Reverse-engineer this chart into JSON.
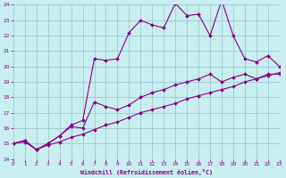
{
  "xlabel": "Windchill (Refroidissement éolien,°C)",
  "bg_color": "#c8eef0",
  "grid_color": "#a0c8d0",
  "line_color": "#880088",
  "x_min": 0,
  "x_max": 23,
  "y_min": 14,
  "y_max": 24,
  "series_top_x": [
    0,
    1,
    2,
    3,
    4,
    5,
    6,
    7,
    8,
    9,
    10,
    11,
    12,
    13,
    14,
    15,
    16,
    17,
    18,
    19,
    20,
    21,
    22,
    23
  ],
  "series_top_y": [
    15.0,
    15.2,
    14.6,
    15.0,
    15.5,
    16.2,
    16.5,
    20.5,
    20.4,
    20.5,
    22.2,
    23.0,
    22.7,
    22.5,
    24.1,
    23.3,
    23.4,
    22.0,
    24.3,
    22.0,
    20.5,
    20.3,
    20.7,
    20.0
  ],
  "series_mid_x": [
    0,
    1,
    2,
    3,
    4,
    5,
    6,
    7,
    8,
    9,
    10,
    11,
    12,
    13,
    14,
    15,
    16,
    17,
    18,
    19,
    20,
    21,
    22,
    23
  ],
  "series_mid_y": [
    15.0,
    15.2,
    14.6,
    15.0,
    15.5,
    16.1,
    16.0,
    17.7,
    17.4,
    17.2,
    17.5,
    18.0,
    18.3,
    18.5,
    18.8,
    19.0,
    19.2,
    19.5,
    19.0,
    19.3,
    19.5,
    19.2,
    19.5,
    19.5
  ],
  "series_bot_x": [
    0,
    1,
    2,
    3,
    4,
    5,
    6,
    7,
    8,
    9,
    10,
    11,
    12,
    13,
    14,
    15,
    16,
    17,
    18,
    19,
    20,
    21,
    22,
    23
  ],
  "series_bot_y": [
    15.0,
    15.1,
    14.6,
    14.9,
    15.1,
    15.4,
    15.6,
    15.9,
    16.2,
    16.4,
    16.7,
    17.0,
    17.2,
    17.4,
    17.6,
    17.9,
    18.1,
    18.3,
    18.5,
    18.7,
    19.0,
    19.2,
    19.4,
    19.6
  ]
}
